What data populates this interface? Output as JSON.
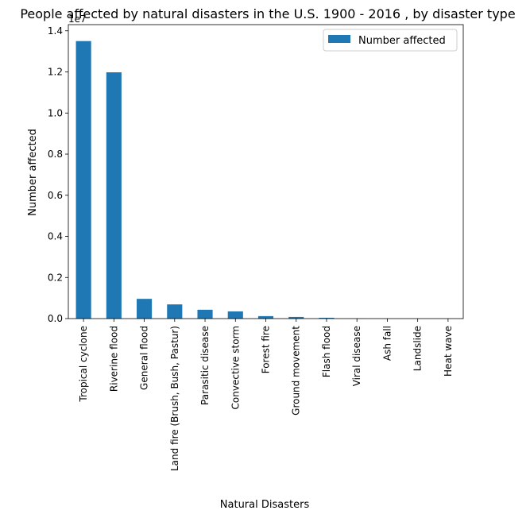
{
  "chart_data": {
    "type": "bar",
    "title": "People affected by natural disasters in the U.S. 1900 - 2016 , by disaster type",
    "xlabel": "Natural Disasters",
    "ylabel": "Number affected",
    "offset_label": "1e7",
    "categories": [
      "Tropical cyclone",
      "Riverine flood",
      "General flood",
      "Land fire (Brush, Bush, Pastur)",
      "Parasitic disease",
      "Convective storm",
      "Forest fire",
      "Ground movement",
      "Flash flood",
      "Viral disease",
      "Ash fall",
      "Landslide",
      "Heat wave"
    ],
    "series": [
      {
        "name": "Number affected",
        "color": "#1f77b4",
        "values": [
          13500000,
          11980000,
          960000,
          690000,
          430000,
          350000,
          120000,
          80000,
          40000,
          5000,
          2000,
          1000,
          500
        ]
      }
    ],
    "ylim": [
      0,
      14300000
    ],
    "yticks": [
      0,
      2000000,
      4000000,
      6000000,
      8000000,
      10000000,
      12000000,
      14000000
    ],
    "ytick_labels": [
      "0.0",
      "0.2",
      "0.4",
      "0.6",
      "0.8",
      "1.0",
      "1.2",
      "1.4"
    ],
    "legend": "top-right",
    "grid": false
  }
}
